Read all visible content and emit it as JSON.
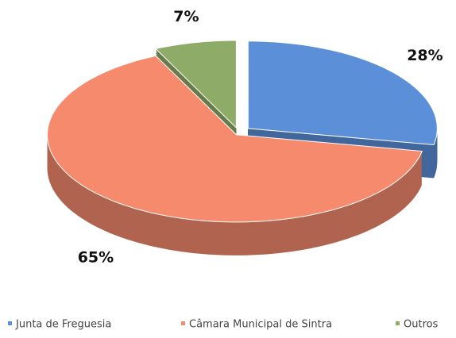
{
  "chart_data": {
    "type": "pie",
    "categories": [
      "Junta de Freguesia",
      "Câmara Municipal de Sintra",
      "Outros"
    ],
    "values": [
      28,
      65,
      7
    ],
    "value_labels": [
      "28%",
      "65%",
      "7%"
    ],
    "colors": [
      "#5b8fd8",
      "#f58a6c",
      "#8fab68"
    ],
    "legend": "bottom"
  }
}
